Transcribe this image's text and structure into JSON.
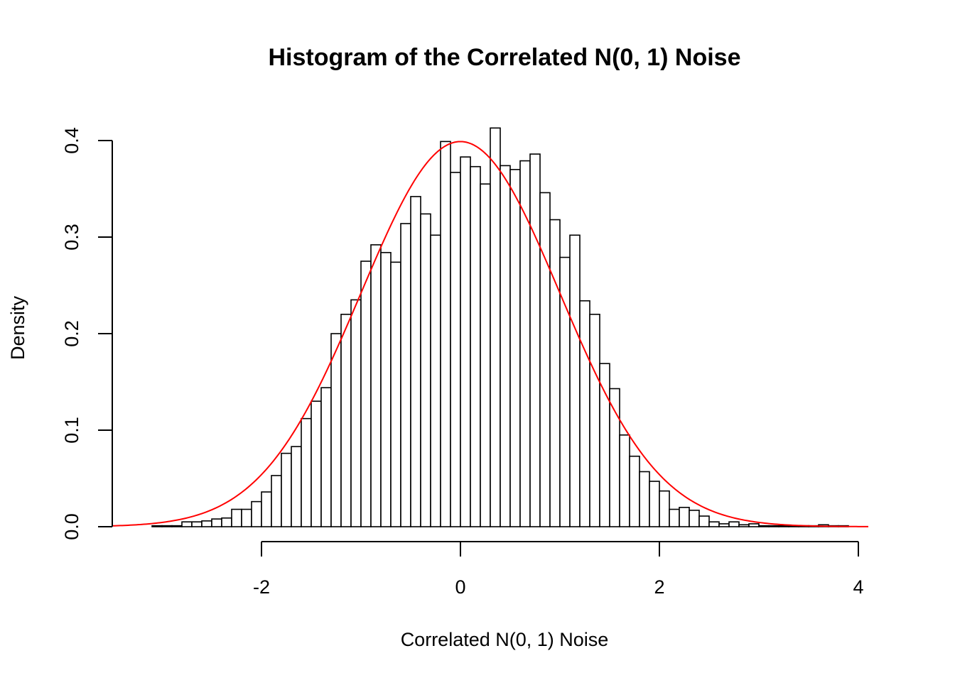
{
  "chart_data": {
    "type": "histogram",
    "title": "Histogram of the Correlated N(0, 1) Noise",
    "xlabel": "Correlated N(0, 1) Noise",
    "ylabel": "Density",
    "xlim": [
      -3.5,
      4.1
    ],
    "ylim": [
      0,
      0.42
    ],
    "x_ticks": [
      "-2",
      "0",
      "2",
      "4"
    ],
    "y_ticks": [
      "0.0",
      "0.1",
      "0.2",
      "0.3",
      "0.4"
    ],
    "bin_width": 0.1,
    "bins_start": -3.1,
    "densities": [
      0.001,
      0.001,
      0.001,
      0.005,
      0.005,
      0.006,
      0.008,
      0.009,
      0.018,
      0.018,
      0.026,
      0.036,
      0.053,
      0.076,
      0.083,
      0.112,
      0.13,
      0.144,
      0.2,
      0.22,
      0.235,
      0.275,
      0.292,
      0.284,
      0.274,
      0.314,
      0.342,
      0.324,
      0.302,
      0.399,
      0.367,
      0.383,
      0.373,
      0.355,
      0.413,
      0.374,
      0.37,
      0.379,
      0.386,
      0.346,
      0.318,
      0.279,
      0.302,
      0.234,
      0.22,
      0.169,
      0.143,
      0.095,
      0.073,
      0.057,
      0.047,
      0.037,
      0.018,
      0.02,
      0.017,
      0.011,
      0.005,
      0.003,
      0.005,
      0.002,
      0.003,
      0.001,
      0.001,
      0.001,
      0.001,
      0.001,
      0.001,
      0.002,
      0.001,
      0.001,
      0.0,
      0.0,
      0.0,
      0.0,
      0.0,
      0.0,
      0.0,
      0.0,
      0.0,
      0.0,
      0.0,
      0.001
    ],
    "density_curve": {
      "distribution": "normal",
      "mean": 0,
      "sd": 1,
      "color": "#ff0000"
    },
    "bar_fill": "#ffffff",
    "bar_stroke": "#000000",
    "grid": false
  }
}
